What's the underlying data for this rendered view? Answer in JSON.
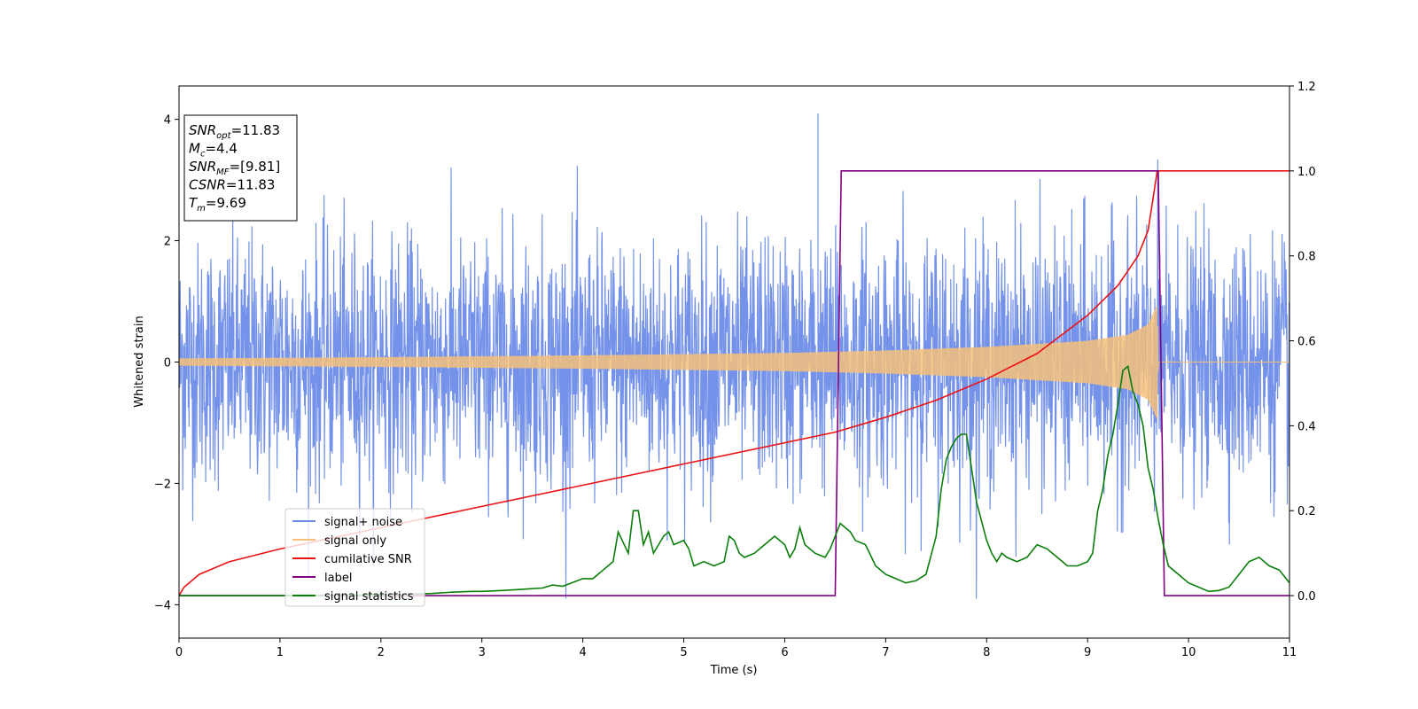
{
  "chart_data": {
    "type": "line",
    "xlabel": "Time (s)",
    "ylabel_left": "Whitened strain",
    "ylabel_right": "",
    "xlim": [
      0,
      11
    ],
    "ylim_left": [
      -4.55,
      4.55
    ],
    "ylim_right": [
      -0.1,
      1.2
    ],
    "x_ticks": [
      0,
      1,
      2,
      3,
      4,
      5,
      6,
      7,
      8,
      9,
      10,
      11
    ],
    "y_left_ticks": [
      -4,
      -2,
      0,
      2,
      4
    ],
    "y_right_ticks": [
      0.0,
      0.2,
      0.4,
      0.6,
      0.8,
      1.0,
      1.2
    ],
    "y_right_tick_labels": [
      "0.0",
      "0.2",
      "0.4",
      "0.6",
      "0.8",
      "1.0",
      "1.2"
    ],
    "grid": false,
    "legend_position": "lower-left",
    "annotation": {
      "lines": [
        {
          "base": "SNR",
          "sub": "opt",
          "rest": "=11.83"
        },
        {
          "base": "M",
          "sub": "c",
          "rest": "=4.4"
        },
        {
          "base": "SNR",
          "sub": "MF",
          "rest": "=[9.81]"
        },
        {
          "base": "CSNR",
          "sub": "",
          "rest": "=11.83"
        },
        {
          "base": "T",
          "sub": "m",
          "rest": "=9.69"
        }
      ]
    },
    "series": [
      {
        "name": "signal+ noise",
        "axis": "left",
        "color": "#6d8ce8",
        "kind": "noise",
        "description_values": {
          "typical_range": [
            -2.0,
            2.0
          ],
          "max_peak": 4.1,
          "min_peak": -3.85,
          "peak_at_x": 6.33
        }
      },
      {
        "name": "signal only",
        "axis": "left",
        "color": "#f5c07a",
        "kind": "chirp",
        "amplitude_points": [
          [
            0,
            0.06
          ],
          [
            2,
            0.08
          ],
          [
            4,
            0.11
          ],
          [
            6,
            0.15
          ],
          [
            7,
            0.19
          ],
          [
            8,
            0.25
          ],
          [
            9,
            0.35
          ],
          [
            9.4,
            0.45
          ],
          [
            9.6,
            0.62
          ],
          [
            9.69,
            0.95
          ],
          [
            9.7,
            0.0
          ],
          [
            11,
            0.0
          ]
        ]
      },
      {
        "name": "cumilative SNR",
        "axis": "right",
        "color": "#ee1111",
        "x": [
          0,
          0.05,
          0.2,
          0.5,
          1,
          2,
          3,
          4,
          5,
          6,
          6.5,
          7,
          7.5,
          8,
          8.5,
          9,
          9.3,
          9.5,
          9.6,
          9.69,
          9.7,
          11
        ],
        "values": [
          0.0,
          0.02,
          0.05,
          0.08,
          0.11,
          0.16,
          0.21,
          0.26,
          0.31,
          0.36,
          0.385,
          0.42,
          0.46,
          0.51,
          0.57,
          0.66,
          0.73,
          0.8,
          0.86,
          1.0,
          1.0,
          1.0
        ]
      },
      {
        "name": "label",
        "axis": "right",
        "color": "#800080",
        "x": [
          0,
          6.5,
          6.56,
          9.7,
          9.76,
          11
        ],
        "values": [
          0,
          0,
          1,
          1,
          0,
          0
        ]
      },
      {
        "name": "signal statistics",
        "axis": "right",
        "color": "#0a7e0a",
        "x": [
          0,
          0.5,
          1,
          1.5,
          2,
          2.5,
          2.7,
          2.9,
          3,
          3.2,
          3.4,
          3.6,
          3.7,
          3.8,
          4,
          4.1,
          4.2,
          4.3,
          4.35,
          4.45,
          4.5,
          4.55,
          4.6,
          4.65,
          4.7,
          4.8,
          4.85,
          4.9,
          5,
          5.05,
          5.1,
          5.2,
          5.3,
          5.4,
          5.45,
          5.5,
          5.55,
          5.6,
          5.7,
          5.8,
          5.9,
          6.0,
          6.05,
          6.1,
          6.15,
          6.2,
          6.25,
          6.3,
          6.4,
          6.45,
          6.5,
          6.55,
          6.6,
          6.65,
          6.7,
          6.8,
          6.9,
          7.0,
          7.1,
          7.2,
          7.3,
          7.4,
          7.5,
          7.55,
          7.6,
          7.65,
          7.7,
          7.75,
          7.8,
          7.85,
          7.9,
          8.0,
          8.05,
          8.1,
          8.15,
          8.2,
          8.3,
          8.4,
          8.5,
          8.6,
          8.7,
          8.8,
          8.9,
          9.0,
          9.05,
          9.1,
          9.15,
          9.2,
          9.25,
          9.3,
          9.35,
          9.4,
          9.45,
          9.5,
          9.55,
          9.6,
          9.65,
          9.7,
          9.75,
          9.8,
          9.9,
          10.0,
          10.1,
          10.2,
          10.3,
          10.4,
          10.5,
          10.6,
          10.7,
          10.8,
          10.9,
          11.0
        ],
        "values": [
          0.0,
          0.0,
          0.0,
          0.0,
          0.002,
          0.005,
          0.008,
          0.01,
          0.01,
          0.012,
          0.015,
          0.018,
          0.025,
          0.022,
          0.04,
          0.04,
          0.06,
          0.08,
          0.15,
          0.1,
          0.2,
          0.2,
          0.12,
          0.15,
          0.1,
          0.14,
          0.15,
          0.12,
          0.13,
          0.11,
          0.07,
          0.08,
          0.07,
          0.08,
          0.14,
          0.13,
          0.1,
          0.09,
          0.1,
          0.12,
          0.14,
          0.12,
          0.09,
          0.11,
          0.16,
          0.12,
          0.11,
          0.1,
          0.09,
          0.11,
          0.14,
          0.17,
          0.16,
          0.15,
          0.13,
          0.12,
          0.07,
          0.05,
          0.04,
          0.03,
          0.035,
          0.05,
          0.14,
          0.25,
          0.32,
          0.35,
          0.37,
          0.38,
          0.38,
          0.3,
          0.22,
          0.13,
          0.1,
          0.08,
          0.1,
          0.09,
          0.08,
          0.09,
          0.12,
          0.11,
          0.09,
          0.07,
          0.07,
          0.08,
          0.1,
          0.2,
          0.25,
          0.33,
          0.38,
          0.45,
          0.53,
          0.54,
          0.48,
          0.45,
          0.4,
          0.3,
          0.25,
          0.18,
          0.12,
          0.07,
          0.05,
          0.03,
          0.02,
          0.01,
          0.012,
          0.02,
          0.05,
          0.08,
          0.09,
          0.07,
          0.06,
          0.03
        ]
      }
    ],
    "legend": [
      {
        "label": "signal+ noise",
        "color": "#6d8ce8"
      },
      {
        "label": "signal only",
        "color": "#f5c07a"
      },
      {
        "label": "cumilative SNR",
        "color": "#ee1111"
      },
      {
        "label": "label",
        "color": "#800080"
      },
      {
        "label": "signal statistics",
        "color": "#0a7e0a"
      }
    ]
  }
}
